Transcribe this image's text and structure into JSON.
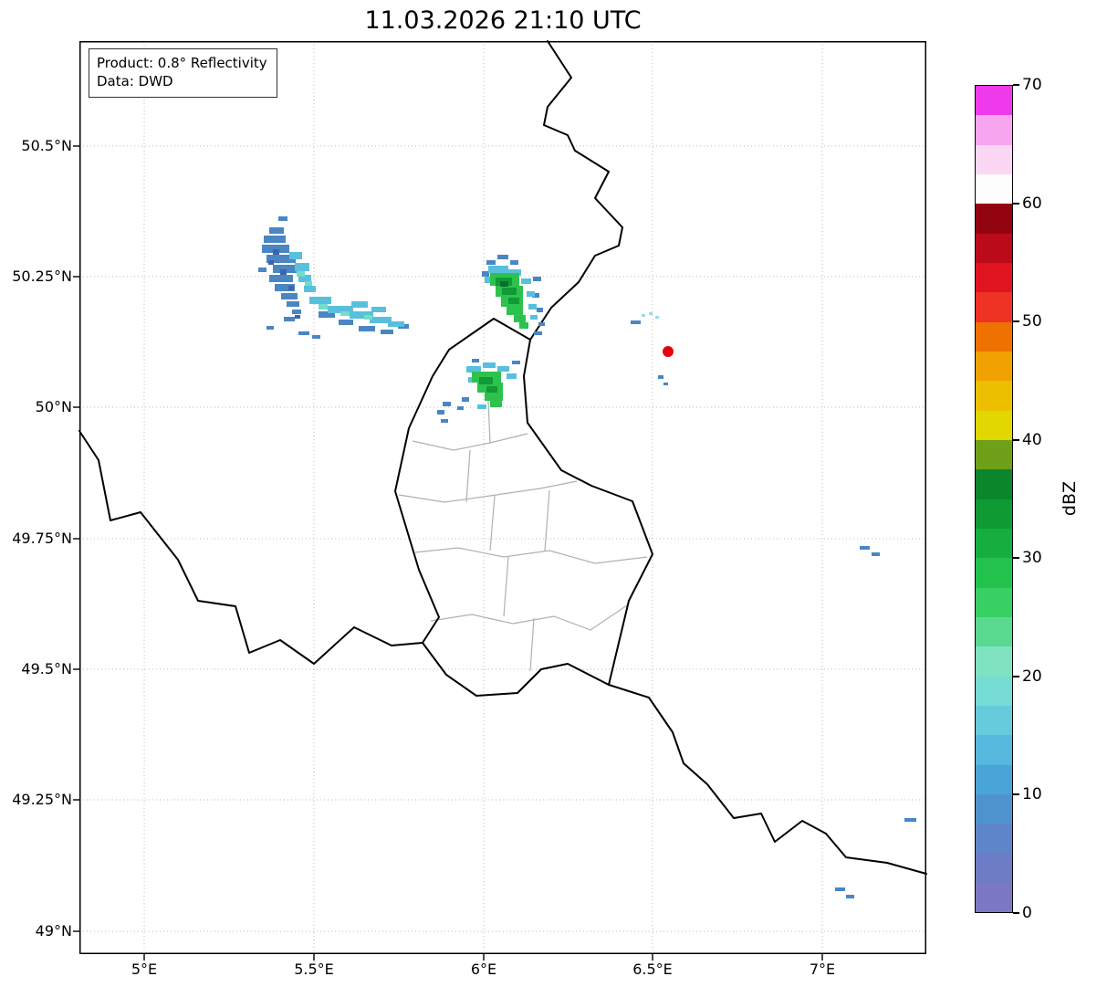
{
  "title": "11.03.2026 21:10 UTC",
  "info_box": {
    "product": "Product: 0.8° Reflectivity",
    "source": "Data: DWD"
  },
  "axes": {
    "y_tick_labels": [
      "50.5°N",
      "50.25°N",
      "50°N",
      "49.75°N",
      "49.5°N",
      "49.25°N",
      "49°N"
    ],
    "x_tick_labels": [
      "5°E",
      "5.5°E",
      "6°E",
      "6.5°E",
      "7°E"
    ]
  },
  "colorbar": {
    "label": "dBZ",
    "tick_labels": [
      "70",
      "60",
      "50",
      "40",
      "30",
      "20",
      "10",
      "0"
    ],
    "range_min": 0,
    "range_max": 70,
    "colors_bottom_to_top": [
      "#7d78c3",
      "#6e7cc6",
      "#5e86c9",
      "#4f93cd",
      "#4aa4d6",
      "#57b8de",
      "#66cbdd",
      "#76dcd4",
      "#7fe3c2",
      "#59da90",
      "#39d063",
      "#23c24d",
      "#16ae3e",
      "#0f9a34",
      "#0b862b",
      "#6fa01a",
      "#e0d800",
      "#ecc000",
      "#f0a000",
      "#ef7100",
      "#ee3224",
      "#df141f",
      "#bb0b18",
      "#920410",
      "#fdfdfd",
      "#fbd7f3",
      "#f8a5ef",
      "#ef3aec"
    ]
  },
  "map": {
    "marker_color": "#e8000b",
    "border_color": "#000000",
    "district_border_color": "#b0b0b0",
    "grid_color": "#bbbbbb",
    "echo_palette": {
      "blue_dark": "#3f64ae",
      "blue": "#4a86c2",
      "cyan": "#58c0dd",
      "cyan_light": "#9fd8ea",
      "teal": "#74dcc8",
      "green": "#2dc24e",
      "green_dark": "#119a36",
      "green_darkest": "#0a7028"
    }
  }
}
